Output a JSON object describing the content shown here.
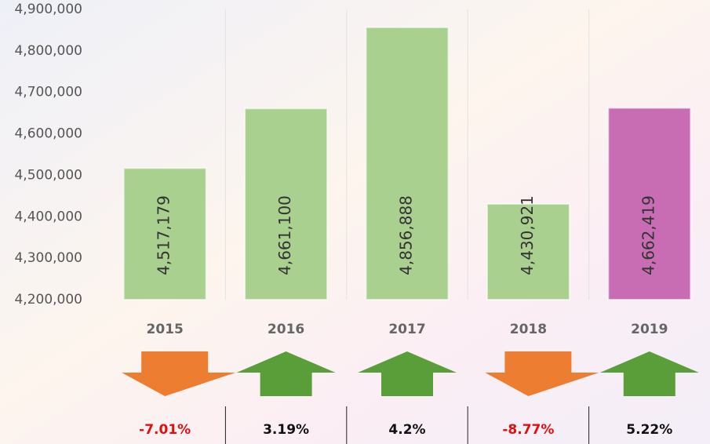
{
  "chart_data": {
    "type": "bar",
    "categories": [
      "2015",
      "2016",
      "2017",
      "2018",
      "2019"
    ],
    "values": [
      4517179,
      4661100,
      4856888,
      4430921,
      4662419
    ],
    "value_labels": [
      "4,517,179",
      "4,661,100",
      "4,856,888",
      "4,430,921",
      "4,662,419"
    ],
    "colors": [
      "#a9d08e",
      "#a9d08e",
      "#a9d08e",
      "#a9d08e",
      "#c86cb4"
    ],
    "ylim": [
      4200000,
      4900000
    ],
    "yticks": [
      {
        "value": 4200000,
        "label": "4,200,000"
      },
      {
        "value": 4300000,
        "label": "4,300,000"
      },
      {
        "value": 4400000,
        "label": "4,400,000"
      },
      {
        "value": 4500000,
        "label": "4,500,000"
      },
      {
        "value": 4600000,
        "label": "4,600,000"
      },
      {
        "value": 4700000,
        "label": "4,700,000"
      },
      {
        "value": 4800000,
        "label": "4,800,000"
      },
      {
        "value": 4900000,
        "label": "4,900,000"
      }
    ],
    "grid": true,
    "changes": [
      -7.01,
      3.19,
      4.2,
      -8.77,
      5.22
    ],
    "change_labels": [
      "-7.01%",
      "3.19%",
      "4.2%",
      "-8.77%",
      "5.22%"
    ],
    "change_colors": {
      "up": "#5a9e3a",
      "down": "#ed7d31",
      "up_text": "#111111",
      "down_text": "#e01010"
    }
  }
}
